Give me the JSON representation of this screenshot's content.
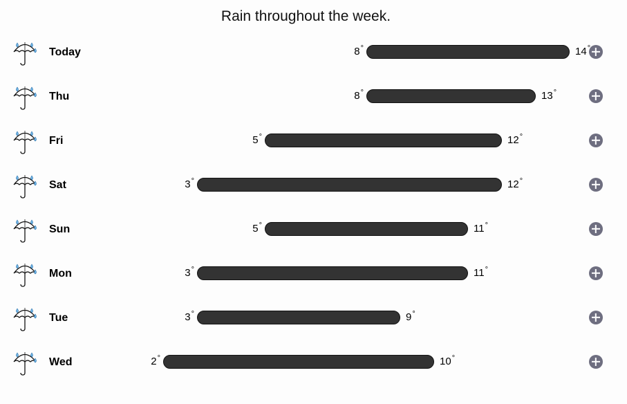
{
  "title": "Rain throughout the week.",
  "degree_symbol": "°",
  "colors": {
    "bar": "#333333",
    "plus_button": "#6e6e80",
    "raindrop": "#6fb6e8"
  },
  "icons": {
    "weather": "umbrella-rain-icon",
    "expand": "plus-circle-icon"
  },
  "scale": {
    "min": 0,
    "max": 16
  },
  "days": [
    {
      "name": "Today",
      "low": "8",
      "high": "14"
    },
    {
      "name": "Thu",
      "low": "8",
      "high": "13"
    },
    {
      "name": "Fri",
      "low": "5",
      "high": "12"
    },
    {
      "name": "Sat",
      "low": "3",
      "high": "12"
    },
    {
      "name": "Sun",
      "low": "5",
      "high": "11"
    },
    {
      "name": "Mon",
      "low": "3",
      "high": "11"
    },
    {
      "name": "Tue",
      "low": "3",
      "high": "9"
    },
    {
      "name": "Wed",
      "low": "2",
      "high": "10"
    }
  ]
}
